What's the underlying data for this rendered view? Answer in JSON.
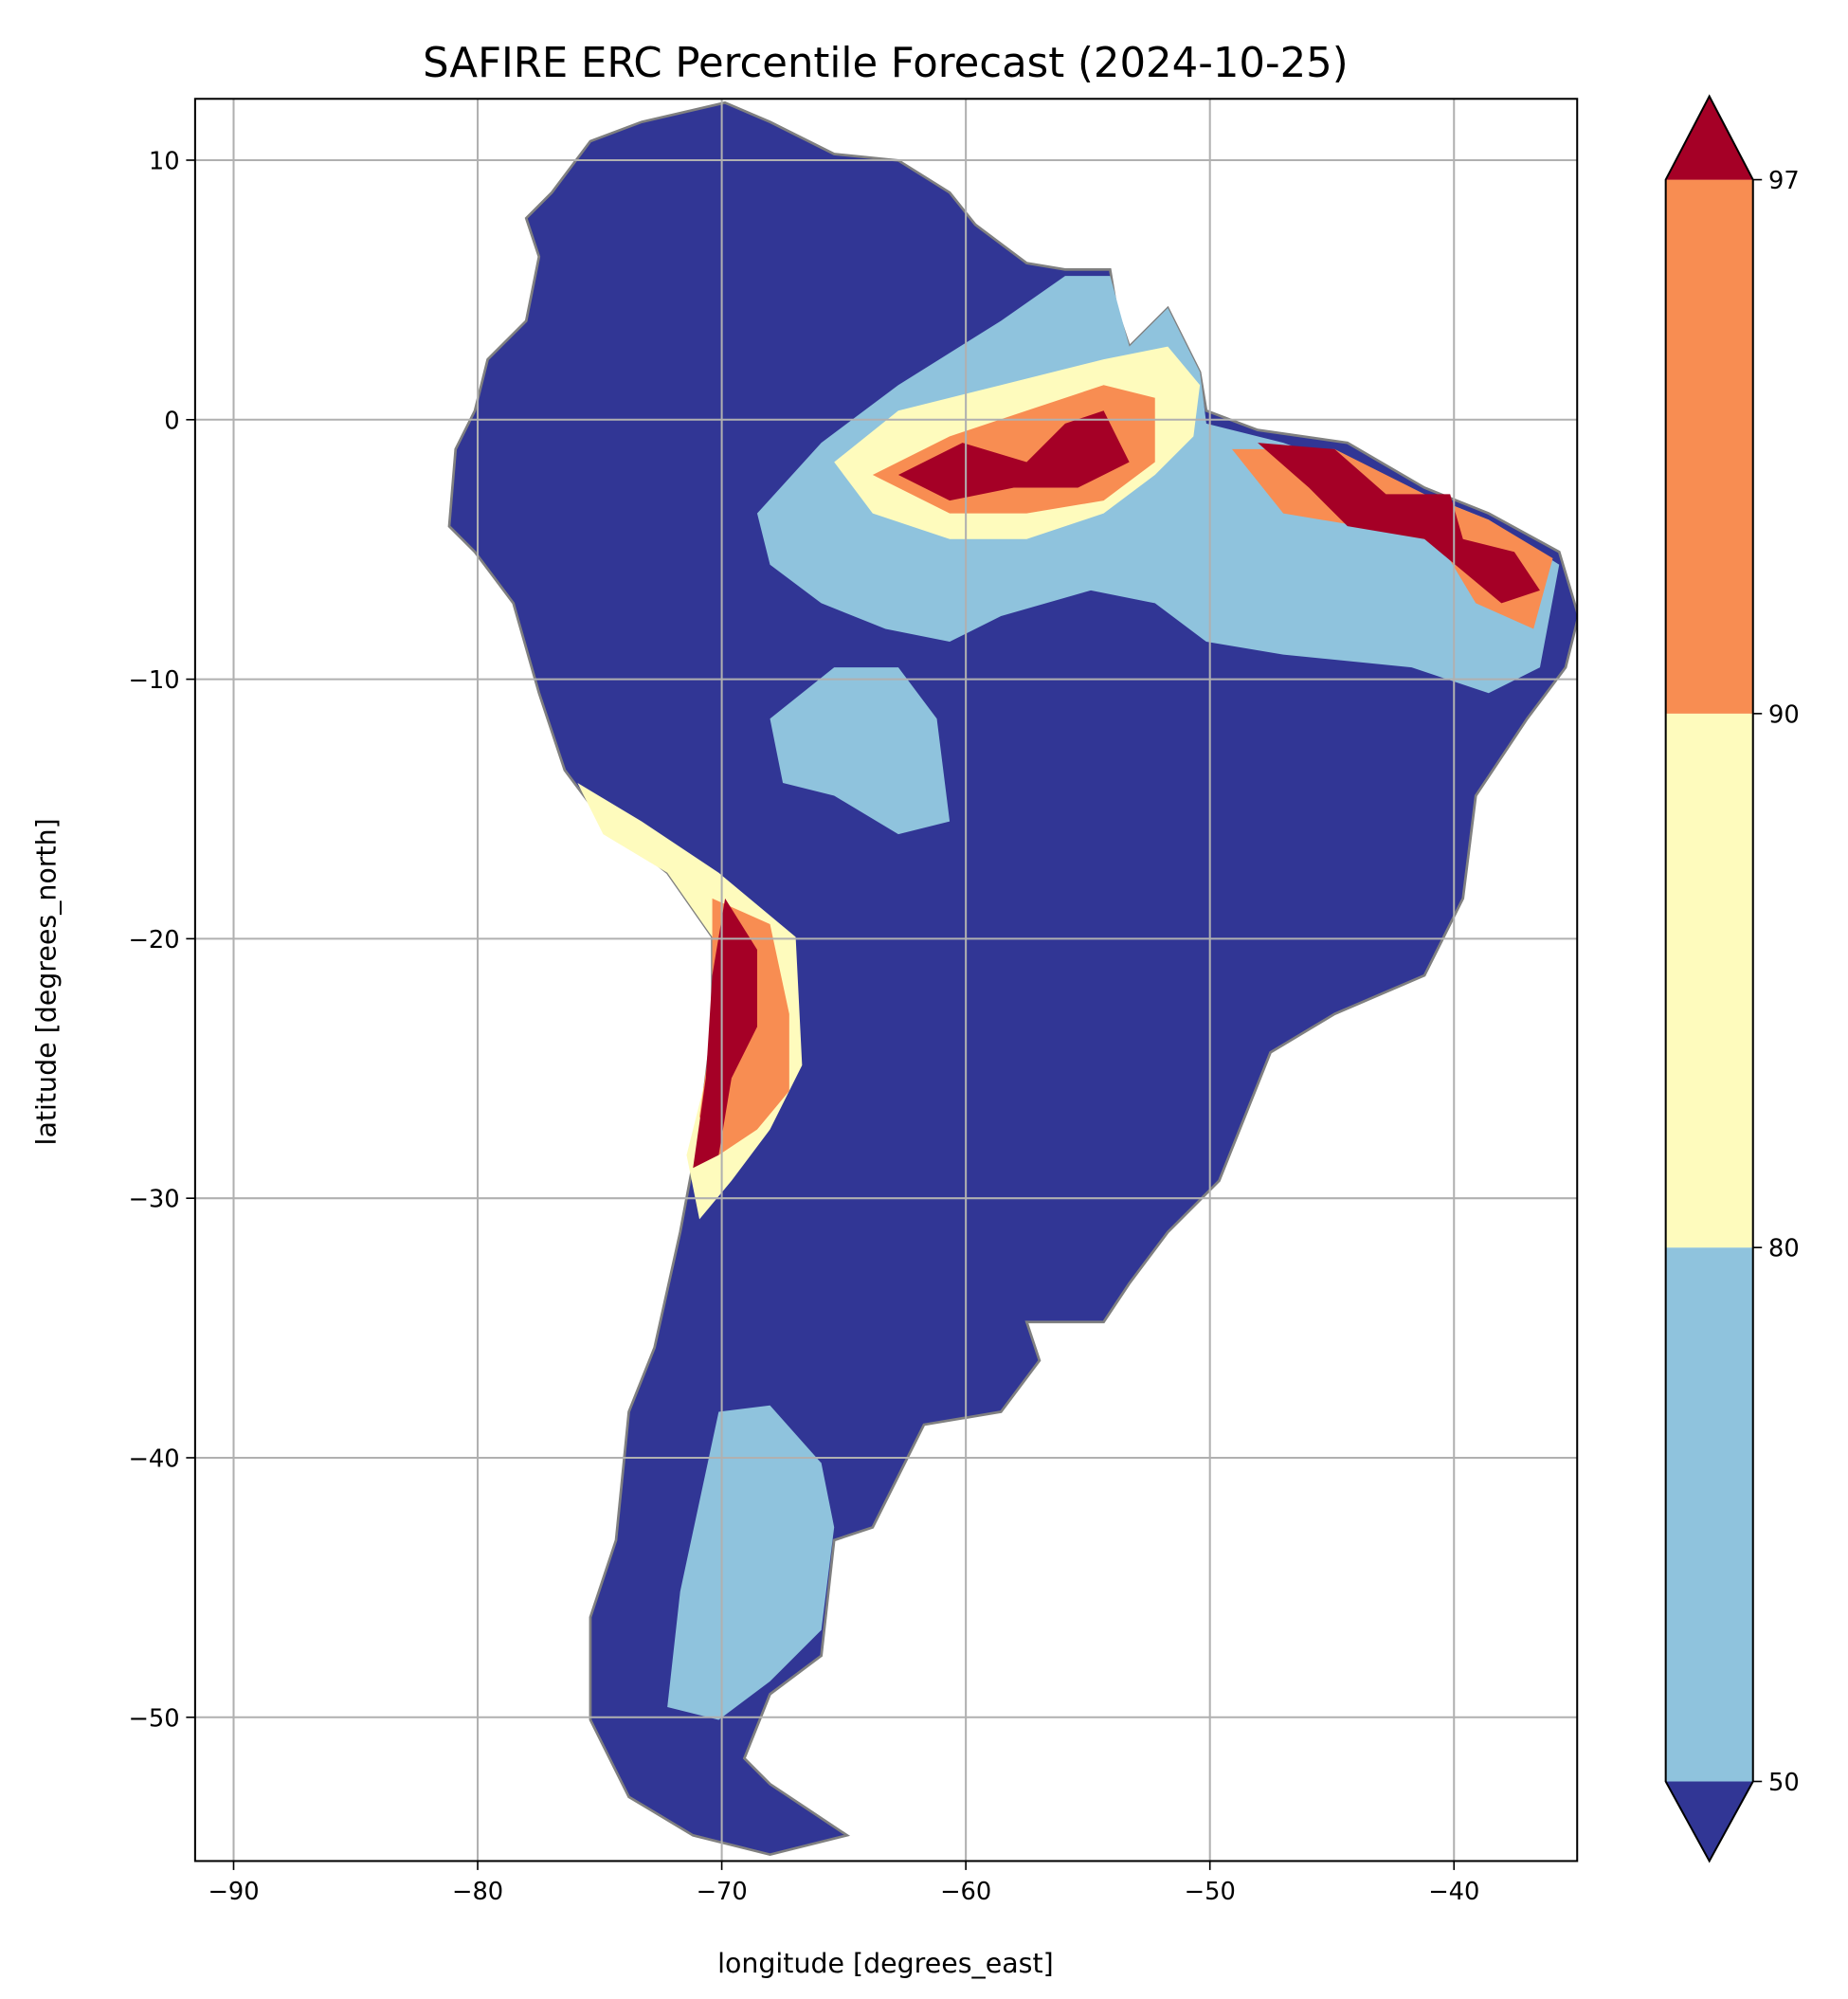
{
  "chart_data": {
    "type": "heatmap",
    "title": "SAFIRE ERC Percentile Forecast (2024-10-25)",
    "xlabel": "longitude [degrees_east]",
    "ylabel": "latitude [degrees_north]",
    "xlim": [
      -91.6,
      -35.0
    ],
    "ylim": [
      -55.5,
      12.4
    ],
    "xticks": [
      -90,
      -80,
      -70,
      -60,
      -50,
      -40
    ],
    "yticks": [
      10,
      0,
      -10,
      -20,
      -30,
      -40,
      -50
    ],
    "xtick_labels": [
      "−90",
      "−80",
      "−70",
      "−60",
      "−50",
      "−40"
    ],
    "ytick_labels": [
      "10",
      "0",
      "−10",
      "−20",
      "−30",
      "−40",
      "−50"
    ],
    "grid": true,
    "colorbar": {
      "levels": [
        50,
        80,
        90,
        97
      ],
      "level_labels": [
        "50",
        "80",
        "90",
        "97"
      ],
      "extend": "both",
      "colors": {
        "below_50": "#313695",
        "50_80": "#8fc3dd",
        "80_90": "#fefbbd",
        "90_97": "#f88d52",
        "above_97": "#a50026"
      },
      "placement": "right"
    },
    "boundary_color": "#808080",
    "region": "South America"
  }
}
